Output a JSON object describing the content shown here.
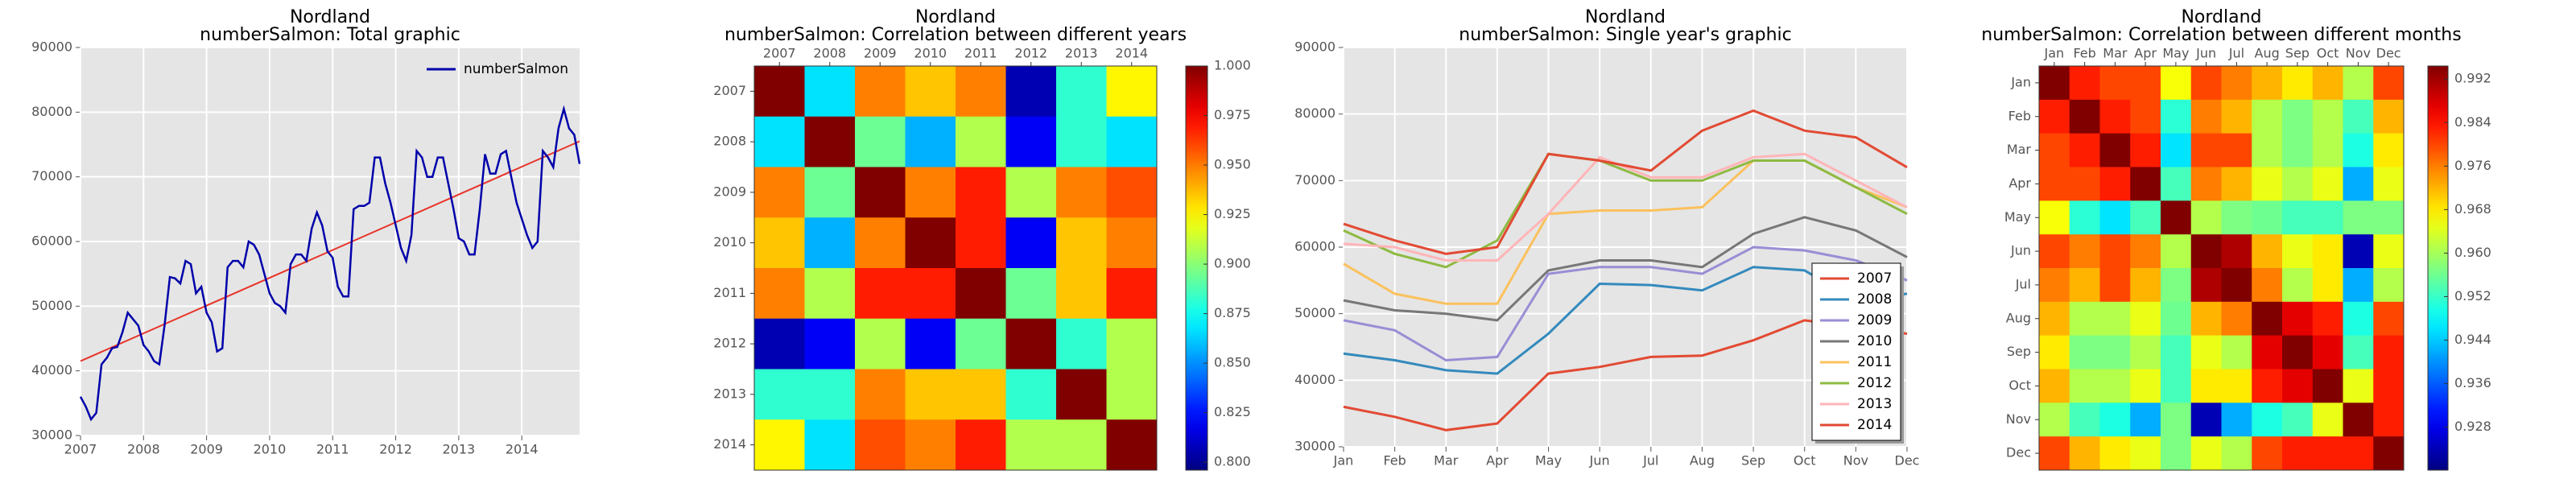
{
  "chart_data": [
    {
      "type": "line",
      "title": "Nordland",
      "subtitle": "numberSalmon: Total graphic",
      "x": [
        2007,
        2007.083,
        2007.167,
        2007.25,
        2007.333,
        2007.417,
        2007.5,
        2007.583,
        2007.667,
        2007.75,
        2007.833,
        2007.917,
        2008,
        2008.083,
        2008.167,
        2008.25,
        2008.333,
        2008.417,
        2008.5,
        2008.583,
        2008.667,
        2008.75,
        2008.833,
        2008.917,
        2009,
        2009.083,
        2009.167,
        2009.25,
        2009.333,
        2009.417,
        2009.5,
        2009.583,
        2009.667,
        2009.75,
        2009.833,
        2009.917,
        2010,
        2010.083,
        2010.167,
        2010.25,
        2010.333,
        2010.417,
        2010.5,
        2010.583,
        2010.667,
        2010.75,
        2010.833,
        2010.917,
        2011,
        2011.083,
        2011.167,
        2011.25,
        2011.333,
        2011.417,
        2011.5,
        2011.583,
        2011.667,
        2011.75,
        2011.833,
        2011.917,
        2012,
        2012.083,
        2012.167,
        2012.25,
        2012.333,
        2012.417,
        2012.5,
        2012.583,
        2012.667,
        2012.75,
        2012.833,
        2012.917,
        2013,
        2013.083,
        2013.167,
        2013.25,
        2013.333,
        2013.417,
        2013.5,
        2013.583,
        2013.667,
        2013.75,
        2013.833,
        2013.917,
        2014,
        2014.083,
        2014.167,
        2014.25,
        2014.333,
        2014.417,
        2014.5,
        2014.583,
        2014.667,
        2014.75,
        2014.833,
        2014.917
      ],
      "series": [
        {
          "name": "numberSalmon",
          "color": "#0000aa",
          "values": [
            36000,
            34500,
            32500,
            33500,
            41000,
            42000,
            43500,
            43700,
            46000,
            49000,
            48000,
            47000,
            44000,
            43000,
            41500,
            41000,
            47000,
            54500,
            54300,
            53500,
            57000,
            56500,
            52000,
            53000,
            49000,
            47500,
            43000,
            43500,
            56000,
            57000,
            57000,
            56000,
            60000,
            59500,
            58000,
            55000,
            52000,
            50500,
            50000,
            49000,
            56500,
            58000,
            58000,
            57000,
            62000,
            64500,
            62500,
            58500,
            57500,
            53000,
            51500,
            51500,
            65000,
            65500,
            65500,
            66000,
            73000,
            73000,
            69000,
            66000,
            62500,
            59000,
            57000,
            61000,
            74000,
            73000,
            70000,
            70000,
            73000,
            73000,
            69000,
            65000,
            60500,
            60000,
            58000,
            58000,
            65000,
            73500,
            70500,
            70500,
            73500,
            74000,
            70000,
            66000,
            63500,
            61000,
            59000,
            60000,
            74000,
            73000,
            71500,
            77500,
            80500,
            77500,
            76500,
            72000
          ]
        }
      ],
      "trend": {
        "x": [
          2007,
          2014.917
        ],
        "values": [
          41500,
          75500
        ],
        "color": "#e8342a"
      },
      "xlim": [
        2007,
        2014.917
      ],
      "xticks": [
        2007,
        2008,
        2009,
        2010,
        2011,
        2012,
        2013,
        2014
      ],
      "ylim": [
        30000,
        90000
      ],
      "yticks": [
        30000,
        40000,
        50000,
        60000,
        70000,
        80000,
        90000
      ],
      "grid": true,
      "legend": "upper right"
    },
    {
      "type": "heatmap",
      "title": "Nordland",
      "subtitle": "numberSalmon: Correlation between different years",
      "x_labels": [
        "2007",
        "2008",
        "2009",
        "2010",
        "2011",
        "2012",
        "2013",
        "2014"
      ],
      "y_labels": [
        "2007",
        "2008",
        "2009",
        "2010",
        "2011",
        "2012",
        "2013",
        "2014"
      ],
      "matrix": [
        [
          1,
          0.867,
          0.949,
          0.935,
          0.949,
          0.806,
          0.882,
          0.925
        ],
        [
          0.867,
          1,
          0.894,
          0.857,
          0.908,
          0.82,
          0.882,
          0.867
        ],
        [
          0.949,
          0.894,
          1,
          0.949,
          0.969,
          0.908,
          0.949,
          0.959
        ],
        [
          0.935,
          0.857,
          0.949,
          1,
          0.969,
          0.82,
          0.935,
          0.949
        ],
        [
          0.949,
          0.908,
          0.969,
          0.969,
          1,
          0.894,
          0.935,
          0.969
        ],
        [
          0.806,
          0.82,
          0.908,
          0.82,
          0.894,
          1,
          0.882,
          0.908
        ],
        [
          0.882,
          0.882,
          0.949,
          0.935,
          0.935,
          0.882,
          1,
          0.908
        ],
        [
          0.925,
          0.867,
          0.959,
          0.949,
          0.969,
          0.908,
          0.908,
          1
        ]
      ],
      "colormap": "jet",
      "clim": [
        0.796,
        1.0
      ],
      "cticks": [
        {
          "value": 0.8,
          "label": "0.800"
        },
        {
          "value": 0.825,
          "label": "0.825"
        },
        {
          "value": 0.85,
          "label": "0.850"
        },
        {
          "value": 0.875,
          "label": "0.875"
        },
        {
          "value": 0.9,
          "label": "0.900"
        },
        {
          "value": 0.925,
          "label": "0.925"
        },
        {
          "value": 0.95,
          "label": "0.950"
        },
        {
          "value": 0.975,
          "label": "0.975"
        },
        {
          "value": 1.0,
          "label": "1.000"
        }
      ]
    },
    {
      "type": "line",
      "title": "Nordland",
      "subtitle": "numberSalmon: Single year's graphic",
      "categories": [
        "Jan",
        "Feb",
        "Mar",
        "Apr",
        "May",
        "Jun",
        "Jul",
        "Aug",
        "Sep",
        "Oct",
        "Nov",
        "Dec"
      ],
      "series": [
        {
          "name": "2007",
          "color": "#e24a33",
          "values": [
            36000,
            34500,
            32500,
            33500,
            41000,
            42000,
            43500,
            43700,
            46000,
            49000,
            48000,
            47000
          ]
        },
        {
          "name": "2008",
          "color": "#348abd",
          "values": [
            44000,
            43000,
            41500,
            41000,
            47000,
            54500,
            54300,
            53500,
            57000,
            56500,
            52000,
            53000
          ]
        },
        {
          "name": "2009",
          "color": "#988ed5",
          "values": [
            49000,
            47500,
            43000,
            43500,
            56000,
            57000,
            57000,
            56000,
            60000,
            59500,
            58000,
            55000
          ]
        },
        {
          "name": "2010",
          "color": "#777777",
          "values": [
            52000,
            50500,
            50000,
            49000,
            56500,
            58000,
            58000,
            57000,
            62000,
            64500,
            62500,
            58500
          ]
        },
        {
          "name": "2011",
          "color": "#fbc15e",
          "values": [
            57500,
            53000,
            51500,
            51500,
            65000,
            65500,
            65500,
            66000,
            73000,
            73000,
            69000,
            66000
          ]
        },
        {
          "name": "2012",
          "color": "#8eba42",
          "values": [
            62500,
            59000,
            57000,
            61000,
            74000,
            73000,
            70000,
            70000,
            73000,
            73000,
            69000,
            65000
          ]
        },
        {
          "name": "2013",
          "color": "#ffb5b8",
          "values": [
            60500,
            60000,
            58000,
            58000,
            65000,
            73500,
            70500,
            70500,
            73500,
            74000,
            70000,
            66000
          ]
        },
        {
          "name": "2014",
          "color": "#e24a33",
          "values": [
            63500,
            61000,
            59000,
            60000,
            74000,
            73000,
            71500,
            77500,
            80500,
            77500,
            76500,
            72000
          ]
        }
      ],
      "ylim": [
        30000,
        90000
      ],
      "yticks": [
        30000,
        40000,
        50000,
        60000,
        70000,
        80000,
        90000
      ],
      "grid": true,
      "legend": "lower right"
    },
    {
      "type": "heatmap",
      "title": "Nordland",
      "subtitle": "numberSalmon: Correlation between different months",
      "x_labels": [
        "Jan",
        "Feb",
        "Mar",
        "Apr",
        "May",
        "Jun",
        "Jul",
        "Aug",
        "Sep",
        "Oct",
        "Nov",
        "Dec"
      ],
      "y_labels": [
        "Jan",
        "Feb",
        "Mar",
        "Apr",
        "May",
        "Jun",
        "Jul",
        "Aug",
        "Sep",
        "Oct",
        "Nov",
        "Dec"
      ],
      "matrix": [
        [
          1,
          0.983,
          0.98,
          0.98,
          0.966,
          0.98,
          0.976,
          0.972,
          0.968,
          0.972,
          0.961,
          0.98
        ],
        [
          0.983,
          1,
          0.983,
          0.98,
          0.951,
          0.976,
          0.972,
          0.961,
          0.957,
          0.961,
          0.953,
          0.972
        ],
        [
          0.98,
          0.983,
          1,
          0.983,
          0.946,
          0.98,
          0.98,
          0.961,
          0.957,
          0.961,
          0.95,
          0.968
        ],
        [
          0.98,
          0.98,
          0.983,
          1,
          0.953,
          0.976,
          0.972,
          0.965,
          0.961,
          0.965,
          0.942,
          0.965
        ],
        [
          0.966,
          0.951,
          0.946,
          0.953,
          1,
          0.961,
          0.957,
          0.956,
          0.953,
          0.953,
          0.957,
          0.957
        ],
        [
          0.98,
          0.976,
          0.98,
          0.976,
          0.961,
          1,
          0.991,
          0.972,
          0.965,
          0.968,
          0.924,
          0.965
        ],
        [
          0.976,
          0.972,
          0.98,
          0.972,
          0.957,
          0.991,
          1,
          0.976,
          0.961,
          0.968,
          0.942,
          0.961
        ],
        [
          0.972,
          0.961,
          0.961,
          0.965,
          0.956,
          0.972,
          0.976,
          1,
          0.987,
          0.983,
          0.95,
          0.98
        ],
        [
          0.968,
          0.957,
          0.957,
          0.961,
          0.953,
          0.965,
          0.961,
          0.987,
          1,
          0.987,
          0.953,
          0.983
        ],
        [
          0.972,
          0.961,
          0.961,
          0.965,
          0.953,
          0.968,
          0.968,
          0.983,
          0.987,
          1,
          0.965,
          0.983
        ],
        [
          0.961,
          0.953,
          0.95,
          0.942,
          0.957,
          0.924,
          0.942,
          0.95,
          0.953,
          0.965,
          1,
          0.983
        ],
        [
          0.98,
          0.972,
          0.968,
          0.965,
          0.957,
          0.965,
          0.961,
          0.98,
          0.983,
          0.983,
          0.983,
          1
        ]
      ],
      "colormap": "jet",
      "clim": [
        0.9201,
        0.9944
      ],
      "cticks": [
        0.928,
        0.936,
        0.944,
        0.952,
        {
          "value": 0.96,
          "label": "0.960"
        },
        0.968,
        0.976,
        0.984,
        0.992
      ]
    }
  ]
}
